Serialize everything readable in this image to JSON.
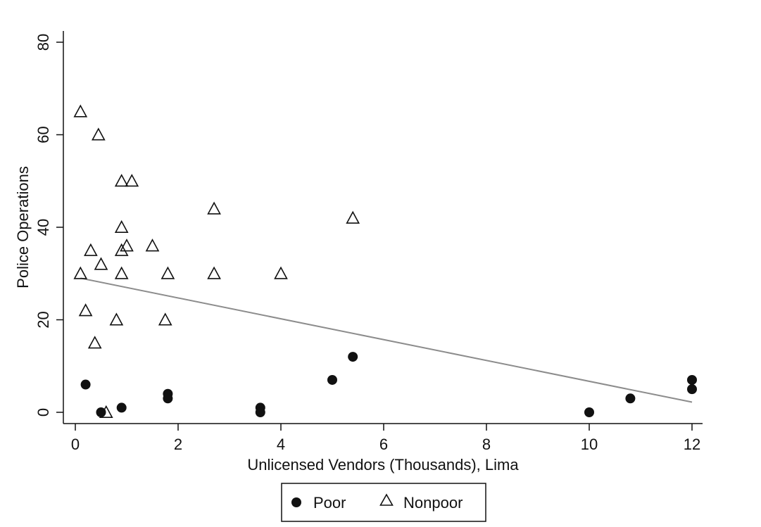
{
  "chart_data": {
    "type": "scatter",
    "xlabel": "Unlicensed Vendors (Thousands), Lima",
    "ylabel": "Police Operations",
    "xlim": [
      0,
      12
    ],
    "ylim": [
      0,
      80
    ],
    "xticks": [
      0,
      2,
      4,
      6,
      8,
      10,
      12
    ],
    "yticks": [
      0,
      20,
      40,
      60,
      80
    ],
    "grid": false,
    "legend_position": "bottom",
    "series": [
      {
        "name": "Poor",
        "marker": "filled-circle",
        "color": "#111111",
        "points": [
          {
            "x": 0.2,
            "y": 6
          },
          {
            "x": 0.5,
            "y": 0
          },
          {
            "x": 0.9,
            "y": 1
          },
          {
            "x": 1.8,
            "y": 4
          },
          {
            "x": 1.8,
            "y": 3
          },
          {
            "x": 3.6,
            "y": 1
          },
          {
            "x": 3.6,
            "y": 0
          },
          {
            "x": 5.0,
            "y": 7
          },
          {
            "x": 5.4,
            "y": 12
          },
          {
            "x": 10.0,
            "y": 0
          },
          {
            "x": 10.8,
            "y": 3
          },
          {
            "x": 12.0,
            "y": 7
          },
          {
            "x": 12.0,
            "y": 5
          }
        ]
      },
      {
        "name": "Nonpoor",
        "marker": "hollow-triangle",
        "color": "#111111",
        "points": [
          {
            "x": 0.1,
            "y": 65
          },
          {
            "x": 0.45,
            "y": 60
          },
          {
            "x": 0.9,
            "y": 50
          },
          {
            "x": 1.1,
            "y": 50
          },
          {
            "x": 2.7,
            "y": 44
          },
          {
            "x": 5.4,
            "y": 42
          },
          {
            "x": 0.9,
            "y": 40
          },
          {
            "x": 1.0,
            "y": 36
          },
          {
            "x": 1.5,
            "y": 36
          },
          {
            "x": 0.3,
            "y": 35
          },
          {
            "x": 0.9,
            "y": 35
          },
          {
            "x": 0.5,
            "y": 32
          },
          {
            "x": 0.1,
            "y": 30
          },
          {
            "x": 0.9,
            "y": 30
          },
          {
            "x": 1.8,
            "y": 30
          },
          {
            "x": 2.7,
            "y": 30
          },
          {
            "x": 4.0,
            "y": 30
          },
          {
            "x": 0.2,
            "y": 22
          },
          {
            "x": 0.8,
            "y": 20
          },
          {
            "x": 1.75,
            "y": 20
          },
          {
            "x": 0.38,
            "y": 15
          },
          {
            "x": 0.6,
            "y": 0
          }
        ]
      }
    ],
    "fit_line": {
      "color": "#8c8c8c",
      "points": [
        {
          "x": 0.1,
          "y": 29
        },
        {
          "x": 12.0,
          "y": 2.2
        }
      ]
    }
  }
}
